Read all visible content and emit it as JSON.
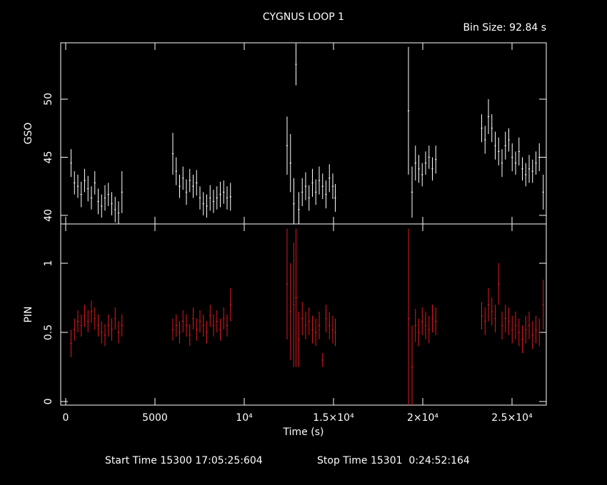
{
  "title": "CYGNUS LOOP 1",
  "bin_size": "Bin Size: 92.84 s",
  "xlabel": "Time (s)",
  "start_time": "Start Time 15300 17:05:25:604",
  "stop_time": "Stop Time 15301  0:24:52:164",
  "chart_data": [
    {
      "type": "errorbar",
      "ylabel": "GSO",
      "color": "#ffffff",
      "xlim": [
        -280,
        26920
      ],
      "ylim": [
        39.26,
        54.85
      ],
      "yticks": [
        40,
        45,
        50
      ],
      "x": [
        300,
        490,
        680,
        870,
        1060,
        1250,
        1440,
        1630,
        1820,
        2010,
        2200,
        2390,
        2580,
        2770,
        2960,
        3150,
        6000,
        6190,
        6380,
        6570,
        6760,
        6950,
        7140,
        7330,
        7520,
        7710,
        7900,
        8090,
        8280,
        8470,
        8660,
        8850,
        9040,
        9230,
        12400,
        12590,
        12780,
        12900,
        13060,
        13250,
        13440,
        13630,
        13820,
        14010,
        14200,
        14390,
        14580,
        14770,
        14960,
        15100,
        19200,
        19400,
        19590,
        19780,
        19970,
        20160,
        20350,
        20540,
        20730,
        23300,
        23490,
        23680,
        23870,
        24060,
        24250,
        24440,
        24630,
        24820,
        25010,
        25200,
        25390,
        25580,
        25770,
        25960,
        26150,
        26340,
        26530,
        26750
      ],
      "values": [
        44.5,
        42.8,
        42.5,
        41.8,
        43.0,
        42.3,
        41.5,
        42.8,
        41.2,
        40.8,
        41.5,
        41.8,
        41.0,
        40.5,
        40.2,
        42.0,
        45.3,
        43.8,
        42.5,
        43.2,
        42.0,
        43.0,
        42.5,
        42.8,
        41.5,
        41.0,
        40.8,
        41.5,
        41.2,
        41.5,
        41.8,
        42.0,
        41.5,
        41.6,
        46.0,
        44.5,
        41.0,
        53.0,
        40.5,
        42.0,
        42.5,
        41.5,
        42.8,
        42.0,
        43.0,
        42.5,
        41.8,
        43.2,
        42.5,
        41.5,
        49.0,
        42.0,
        44.5,
        44.0,
        43.5,
        44.5,
        45.0,
        44.0,
        44.8,
        47.5,
        46.5,
        48.5,
        47.5,
        46.0,
        45.5,
        44.5,
        46.0,
        46.5,
        45.0,
        44.5,
        45.5,
        44.0,
        43.5,
        44.0,
        43.8,
        44.5,
        45.0,
        42.0
      ],
      "errors": [
        1.2,
        1.0,
        1.0,
        1.1,
        1.0,
        1.1,
        1.0,
        1.0,
        1.1,
        1.0,
        1.1,
        1.0,
        1.0,
        1.1,
        1.0,
        1.8,
        1.8,
        1.2,
        1.0,
        1.0,
        1.1,
        1.0,
        1.0,
        1.1,
        1.0,
        1.0,
        1.0,
        1.1,
        1.0,
        1.0,
        1.1,
        1.0,
        1.0,
        1.2,
        2.5,
        2.5,
        2.2,
        1.8,
        1.5,
        1.2,
        1.2,
        1.1,
        1.2,
        1.1,
        1.2,
        1.1,
        1.2,
        1.2,
        1.1,
        1.2,
        5.5,
        2.2,
        1.5,
        1.2,
        1.0,
        1.0,
        1.0,
        1.0,
        1.2,
        1.2,
        1.2,
        1.5,
        1.2,
        1.2,
        1.2,
        1.2,
        1.2,
        1.0,
        1.2,
        1.0,
        1.2,
        1.0,
        1.0,
        1.2,
        1.0,
        1.0,
        1.2,
        1.5
      ]
    },
    {
      "type": "errorbar",
      "ylabel": "PIN",
      "color": "#e0191e",
      "xlim": [
        -280,
        26920
      ],
      "ylim": [
        -0.026,
        1.284
      ],
      "yticks": [
        0,
        0.5,
        1
      ],
      "xticks": [
        0,
        5000,
        {
          "value": 10000,
          "label": "10⁴"
        },
        {
          "value": 15000,
          "label": "1.5×10⁴"
        },
        {
          "value": 20000,
          "label": "2×10⁴"
        },
        {
          "value": 25000,
          "label": "2.5×10⁴"
        }
      ],
      "x": [
        300,
        490,
        680,
        870,
        1060,
        1250,
        1440,
        1630,
        1820,
        2010,
        2200,
        2390,
        2580,
        2770,
        2960,
        3150,
        6000,
        6190,
        6380,
        6570,
        6760,
        6950,
        7140,
        7330,
        7520,
        7710,
        7900,
        8090,
        8280,
        8470,
        8660,
        8850,
        9040,
        9230,
        12400,
        12590,
        12780,
        12900,
        13060,
        13250,
        13440,
        13630,
        13820,
        14010,
        14200,
        14390,
        14580,
        14770,
        14960,
        15100,
        19200,
        19400,
        19590,
        19780,
        19970,
        20160,
        20350,
        20540,
        20730,
        23300,
        23490,
        23680,
        23870,
        24060,
        24250,
        24440,
        24630,
        24820,
        25010,
        25200,
        25390,
        25580,
        25770,
        25960,
        26150,
        26340,
        26530,
        26750
      ],
      "values": [
        0.42,
        0.52,
        0.58,
        0.55,
        0.62,
        0.58,
        0.65,
        0.6,
        0.55,
        0.5,
        0.48,
        0.55,
        0.52,
        0.6,
        0.5,
        0.55,
        0.52,
        0.55,
        0.5,
        0.58,
        0.55,
        0.48,
        0.6,
        0.52,
        0.58,
        0.55,
        0.5,
        0.62,
        0.55,
        0.58,
        0.52,
        0.6,
        0.55,
        0.7,
        0.85,
        0.65,
        0.7,
        0.75,
        0.45,
        0.6,
        0.55,
        0.58,
        0.52,
        0.5,
        0.55,
        0.3,
        0.6,
        0.55,
        0.52,
        0.5,
        0.6,
        0.25,
        0.55,
        0.5,
        0.58,
        0.55,
        0.52,
        0.6,
        0.58,
        0.62,
        0.58,
        0.7,
        0.65,
        0.6,
        0.85,
        0.55,
        0.6,
        0.58,
        0.52,
        0.55,
        0.5,
        0.45,
        0.52,
        0.55,
        0.48,
        0.52,
        0.5,
        0.7
      ],
      "errors": [
        0.1,
        0.08,
        0.08,
        0.08,
        0.08,
        0.08,
        0.08,
        0.08,
        0.08,
        0.08,
        0.08,
        0.08,
        0.08,
        0.08,
        0.08,
        0.08,
        0.08,
        0.08,
        0.08,
        0.08,
        0.08,
        0.08,
        0.08,
        0.08,
        0.08,
        0.08,
        0.08,
        0.08,
        0.08,
        0.08,
        0.08,
        0.08,
        0.08,
        0.12,
        0.4,
        0.35,
        0.45,
        0.5,
        0.2,
        0.12,
        0.1,
        0.1,
        0.1,
        0.1,
        0.1,
        0.05,
        0.1,
        0.1,
        0.1,
        0.1,
        0.65,
        0.3,
        0.12,
        0.1,
        0.1,
        0.1,
        0.1,
        0.1,
        0.1,
        0.1,
        0.1,
        0.12,
        0.1,
        0.1,
        0.15,
        0.1,
        0.1,
        0.1,
        0.1,
        0.1,
        0.1,
        0.1,
        0.1,
        0.1,
        0.1,
        0.1,
        0.1,
        0.18
      ]
    }
  ]
}
